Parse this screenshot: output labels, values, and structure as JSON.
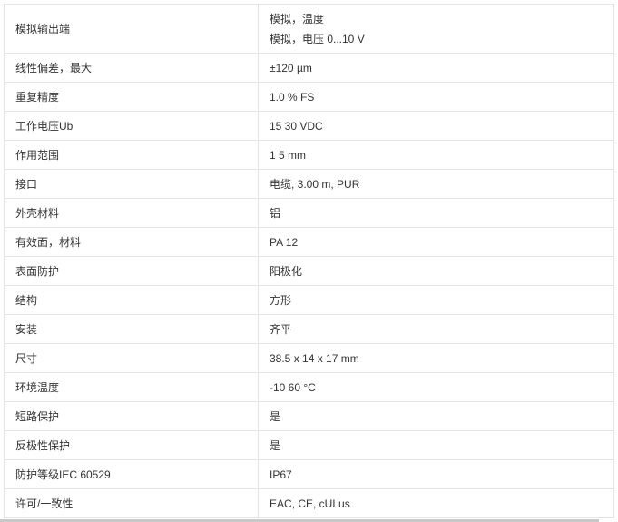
{
  "specs": [
    {
      "label": "模拟输出端",
      "values": [
        "模拟，温度",
        "模拟，电压 0...10 V"
      ]
    },
    {
      "label": "线性偏差，最大",
      "values": [
        "±120 µm"
      ]
    },
    {
      "label": "重复精度",
      "values": [
        "1.0 % FS"
      ]
    },
    {
      "label": "工作电压Ub",
      "values": [
        "15 30 VDC"
      ]
    },
    {
      "label": "作用范围",
      "values": [
        "1 5 mm"
      ]
    },
    {
      "label": "接口",
      "values": [
        "电缆, 3.00 m, PUR"
      ]
    },
    {
      "label": "外壳材料",
      "values": [
        "铝"
      ]
    },
    {
      "label": "有效面，材料",
      "values": [
        "PA 12"
      ]
    },
    {
      "label": "表面防护",
      "values": [
        "阳极化"
      ]
    },
    {
      "label": "结构",
      "values": [
        "方形"
      ]
    },
    {
      "label": "安装",
      "values": [
        "齐平"
      ]
    },
    {
      "label": "尺寸",
      "values": [
        "38.5 x 14 x 17 mm"
      ]
    },
    {
      "label": "环境温度",
      "values": [
        "-10 60 °C"
      ]
    },
    {
      "label": "短路保护",
      "values": [
        "是"
      ]
    },
    {
      "label": "反极性保护",
      "values": [
        "是"
      ]
    },
    {
      "label": "防护等级IEC 60529",
      "values": [
        "IP67"
      ]
    },
    {
      "label": "许可/一致性",
      "values": [
        "EAC, CE, cULus"
      ]
    }
  ]
}
